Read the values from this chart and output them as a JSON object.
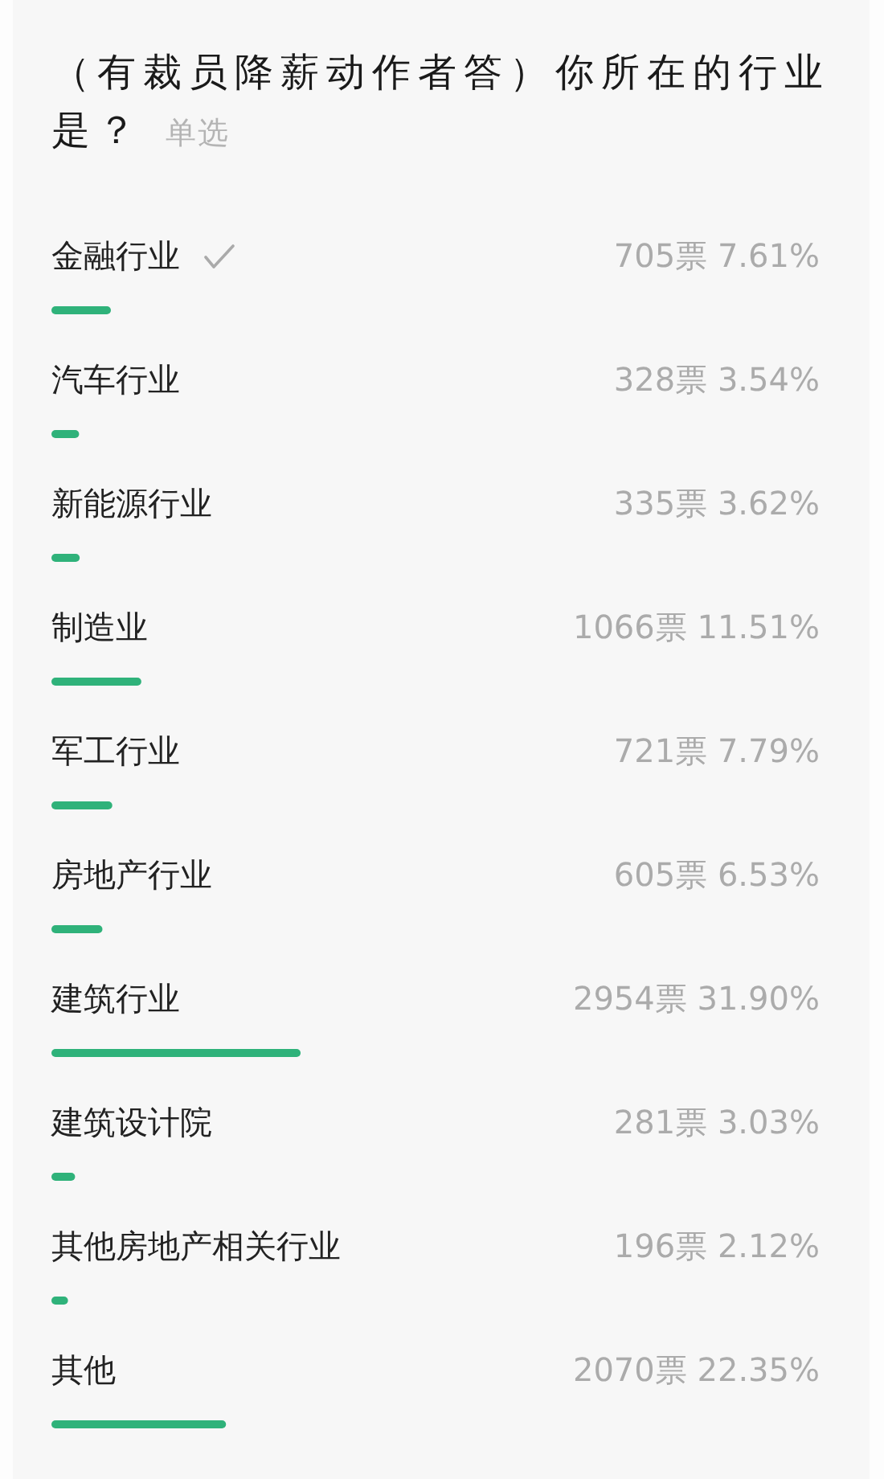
{
  "chart_data": {
    "type": "bar",
    "orientation": "horizontal",
    "title": "（有裁员降薪动作者答）你所在的行业是？",
    "subtitle": "单选",
    "categories": [
      "金融行业",
      "汽车行业",
      "新能源行业",
      "制造业",
      "军工行业",
      "房地产行业",
      "建筑行业",
      "建筑设计院",
      "其他房地产相关行业",
      "其他"
    ],
    "values": [
      7.61,
      3.54,
      3.62,
      11.51,
      7.79,
      6.53,
      31.9,
      3.03,
      2.12,
      22.35
    ],
    "value_labels": [
      "705票 7.61%",
      "328票 3.54%",
      "335票 3.62%",
      "1066票 11.51%",
      "721票 7.79%",
      "605票 6.53%",
      "2954票 31.90%",
      "281票 3.03%",
      "196票 2.12%",
      "2070票 22.35%"
    ],
    "color": "#2fb27a",
    "tick_labels": "y"
  }
}
